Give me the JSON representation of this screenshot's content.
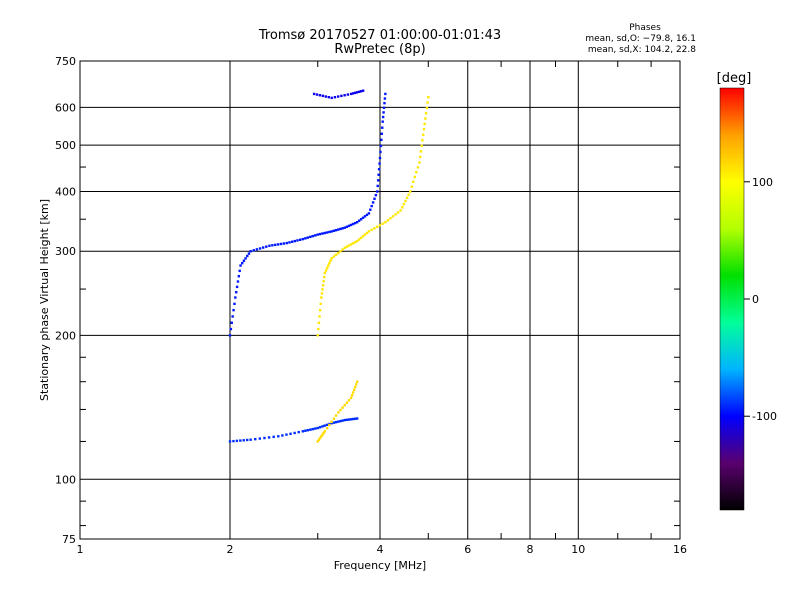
{
  "chart_data": {
    "type": "scatter",
    "title": "Tromsø 20170527 01:00:00-01:01:43",
    "subtitle": "RwPretec (8p)",
    "xlabel": "Frequency [MHz]",
    "ylabel": "Stationary phase Virtual Height [km]",
    "x_scale": "log",
    "y_scale": "log",
    "xlim": [
      1,
      16
    ],
    "ylim": [
      75,
      750
    ],
    "x_ticks": [
      1,
      2,
      4,
      6,
      8,
      10,
      16
    ],
    "x_tick_labels": [
      "1",
      "2",
      "4",
      "6",
      "8",
      "10",
      "16"
    ],
    "y_ticks": [
      75,
      100,
      200,
      300,
      400,
      500,
      600,
      750
    ],
    "y_tick_labels": [
      "75",
      "100",
      "200",
      "300",
      "400",
      "500",
      "600",
      "750"
    ],
    "grid": true,
    "phase_info": {
      "title": "Phases",
      "line_o": "mean, sd,O: −79.8, 16.1",
      "line_x": "mean, sd,X: 104.2, 22.8"
    },
    "colorbar": {
      "label": "[deg]",
      "range": [
        -180,
        180
      ],
      "ticks": [
        100,
        0,
        -100
      ],
      "tick_labels": [
        "100",
        "0",
        "-100"
      ],
      "colors": [
        "#000000",
        "#5a006e",
        "#0000ff",
        "#00b4ff",
        "#00ff9a",
        "#00e000",
        "#b4ff00",
        "#ffff00",
        "#ffa000",
        "#ff0000"
      ]
    },
    "traces": [
      {
        "name": "",
        "phase_deg": -90,
        "points": [
          [
            2.0,
            120
          ],
          [
            2.2,
            121
          ],
          [
            2.5,
            123
          ],
          [
            2.8,
            126
          ],
          [
            3.0,
            128
          ],
          [
            3.2,
            131
          ],
          [
            3.4,
            133
          ],
          [
            3.6,
            134
          ]
        ]
      },
      {
        "name": "",
        "phase_deg": -95,
        "points": [
          [
            2.0,
            200
          ],
          [
            2.05,
            240
          ],
          [
            2.1,
            280
          ],
          [
            2.2,
            300
          ],
          [
            2.4,
            308
          ],
          [
            2.6,
            312
          ],
          [
            2.8,
            318
          ],
          [
            3.0,
            325
          ],
          [
            3.2,
            330
          ],
          [
            3.4,
            336
          ],
          [
            3.6,
            345
          ],
          [
            3.8,
            360
          ],
          [
            3.95,
            400
          ],
          [
            4.0,
            470
          ],
          [
            4.05,
            560
          ],
          [
            4.1,
            640
          ]
        ]
      },
      {
        "name": "",
        "phase_deg": 110,
        "points": [
          [
            3.0,
            200
          ],
          [
            3.05,
            240
          ],
          [
            3.1,
            270
          ],
          [
            3.2,
            290
          ],
          [
            3.4,
            305
          ],
          [
            3.6,
            315
          ],
          [
            3.8,
            330
          ],
          [
            4.1,
            345
          ],
          [
            4.4,
            365
          ],
          [
            4.6,
            400
          ],
          [
            4.8,
            460
          ],
          [
            4.9,
            540
          ],
          [
            5.0,
            630
          ]
        ]
      },
      {
        "name": "",
        "phase_deg": 115,
        "points": [
          [
            3.0,
            120
          ],
          [
            3.1,
            126
          ],
          [
            3.3,
            138
          ],
          [
            3.5,
            148
          ],
          [
            3.6,
            160
          ]
        ]
      },
      {
        "name": "",
        "phase_deg": -105,
        "points": [
          [
            2.95,
            640
          ],
          [
            3.2,
            628
          ],
          [
            3.5,
            640
          ],
          [
            3.7,
            650
          ]
        ]
      }
    ]
  }
}
